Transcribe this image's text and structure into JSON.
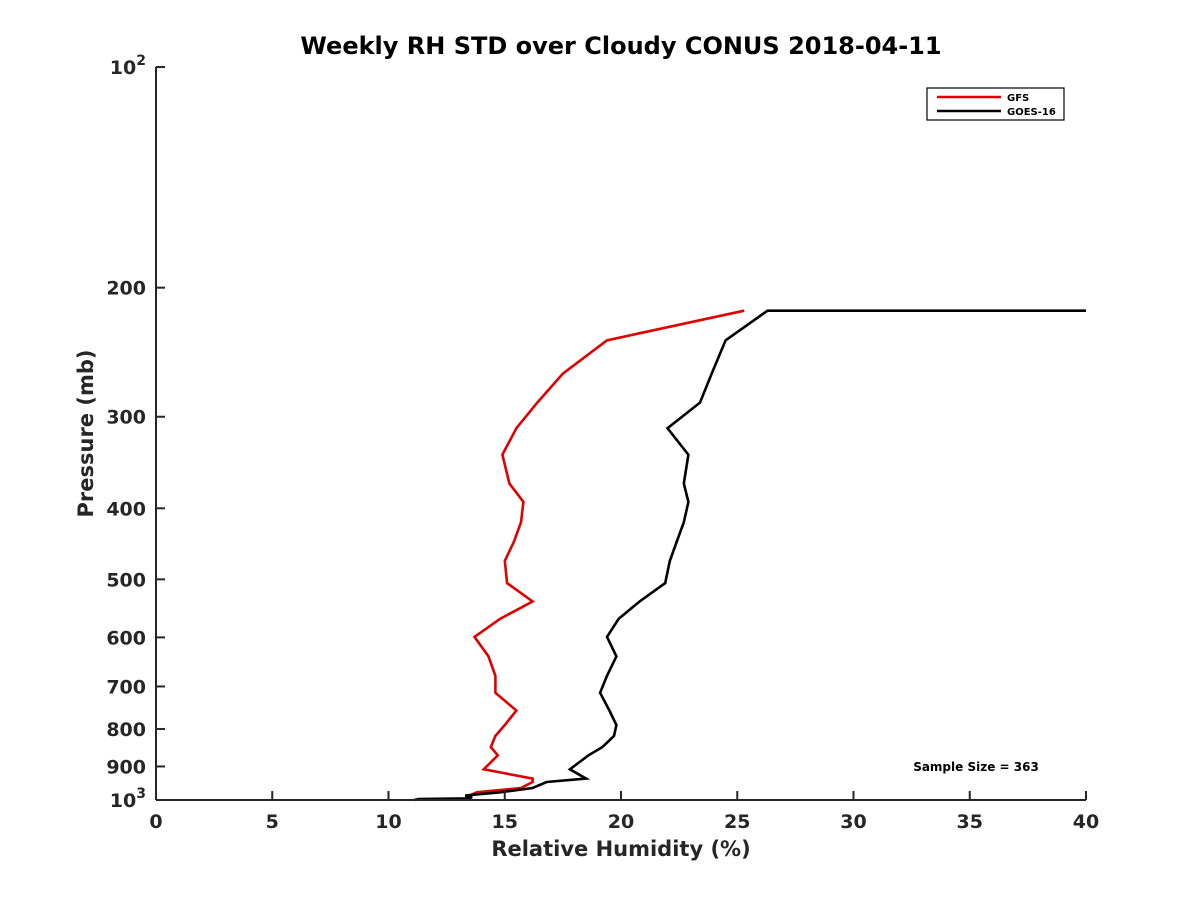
{
  "chart_data": {
    "type": "line",
    "title": "Weekly RH STD over Cloudy CONUS 2018-04-11",
    "xlabel": "Relative Humidity (%)",
    "ylabel": "Pressure (mb)",
    "xlim": [
      0,
      40
    ],
    "ylim": [
      100,
      1000
    ],
    "yscale": "log",
    "y_reversed": true,
    "xticks": [
      0,
      5,
      10,
      15,
      20,
      25,
      30,
      35,
      40
    ],
    "xtick_labels": [
      "0",
      "5",
      "10",
      "15",
      "20",
      "25",
      "30",
      "35",
      "40"
    ],
    "yticks": [
      100,
      200,
      300,
      400,
      500,
      600,
      700,
      800,
      900,
      1000
    ],
    "ytick_labels": [
      {
        "base": "10",
        "exp": "2"
      },
      {
        "base": "200",
        "exp": ""
      },
      {
        "base": "300",
        "exp": ""
      },
      {
        "base": "400",
        "exp": ""
      },
      {
        "base": "500",
        "exp": ""
      },
      {
        "base": "600",
        "exp": ""
      },
      {
        "base": "700",
        "exp": ""
      },
      {
        "base": "800",
        "exp": ""
      },
      {
        "base": "900",
        "exp": ""
      },
      {
        "base": "10",
        "exp": "3"
      }
    ],
    "legend_position": "top-right",
    "grid": false,
    "annotation": "Sample Size = 363",
    "series": [
      {
        "name": "GFS",
        "color": "#e00000",
        "points": [
          [
            25.3,
            215
          ],
          [
            19.4,
            236
          ],
          [
            17.5,
            262
          ],
          [
            16.4,
            287
          ],
          [
            15.5,
            311
          ],
          [
            14.9,
            338
          ],
          [
            15.2,
            370
          ],
          [
            15.8,
            392
          ],
          [
            15.7,
            418
          ],
          [
            15.4,
            444
          ],
          [
            15.0,
            472
          ],
          [
            15.1,
            506
          ],
          [
            16.2,
            536
          ],
          [
            14.8,
            566
          ],
          [
            13.7,
            599
          ],
          [
            14.3,
            637
          ],
          [
            14.6,
            677
          ],
          [
            14.6,
            714
          ],
          [
            15.5,
            755
          ],
          [
            15.0,
            790
          ],
          [
            14.6,
            818
          ],
          [
            14.4,
            847
          ],
          [
            14.7,
            869
          ],
          [
            14.1,
            908
          ],
          [
            16.2,
            935
          ],
          [
            16.2,
            945
          ],
          [
            15.7,
            963
          ],
          [
            13.8,
            976
          ],
          [
            13.5,
            986
          ],
          [
            13.5,
            997
          ]
        ]
      },
      {
        "name": "GOES-16",
        "color": "#000000",
        "points": [
          [
            40.0,
            215
          ],
          [
            26.3,
            215
          ],
          [
            24.5,
            236
          ],
          [
            23.9,
            262
          ],
          [
            23.4,
            287
          ],
          [
            22.0,
            311
          ],
          [
            22.9,
            338
          ],
          [
            22.7,
            370
          ],
          [
            22.9,
            392
          ],
          [
            22.7,
            418
          ],
          [
            22.4,
            444
          ],
          [
            22.1,
            472
          ],
          [
            21.9,
            506
          ],
          [
            20.8,
            536
          ],
          [
            19.9,
            566
          ],
          [
            19.4,
            599
          ],
          [
            19.8,
            637
          ],
          [
            19.4,
            677
          ],
          [
            19.1,
            714
          ],
          [
            19.5,
            755
          ],
          [
            19.8,
            790
          ],
          [
            19.7,
            818
          ],
          [
            19.2,
            847
          ],
          [
            18.6,
            869
          ],
          [
            17.8,
            908
          ],
          [
            18.5,
            935
          ],
          [
            16.8,
            945
          ],
          [
            16.2,
            963
          ],
          [
            14.8,
            976
          ],
          [
            13.3,
            986
          ],
          [
            13.6,
            992
          ],
          [
            13.3,
            995
          ],
          [
            11.3,
            997
          ],
          [
            11.1,
            1000
          ]
        ]
      }
    ]
  }
}
